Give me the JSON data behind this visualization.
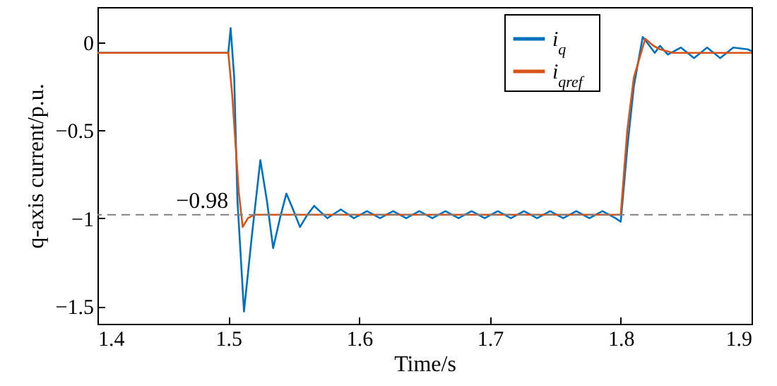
{
  "chart_data": {
    "type": "line",
    "xlabel": "Time/s",
    "ylabel": "q-axis current/p.u.",
    "xlim": [
      1.4,
      1.9
    ],
    "xticks": [
      1.4,
      1.5,
      1.6,
      1.7,
      1.8,
      1.9
    ],
    "ylim": [
      -1.6,
      0.2
    ],
    "yticks": [
      0,
      -0.5,
      -1,
      -1.5
    ],
    "grid": false,
    "legend": "top right",
    "marker": "none",
    "line_style": "solid",
    "ref_lines": [
      {
        "axis": "y",
        "value": -0.98,
        "label": "−0.98",
        "color": "#808080",
        "line_style": "dashed"
      }
    ],
    "series": [
      {
        "name": "i$_{q}$",
        "color": "#0072bd",
        "x": [
          1.4,
          1.5,
          1.5018,
          1.5045,
          1.507,
          1.512,
          1.518,
          1.5245,
          1.5295,
          1.5343,
          1.5395,
          1.5444,
          1.5495,
          1.5548,
          1.5605,
          1.5656,
          1.5757,
          1.586,
          1.596,
          1.606,
          1.616,
          1.626,
          1.636,
          1.646,
          1.656,
          1.666,
          1.676,
          1.686,
          1.696,
          1.706,
          1.716,
          1.726,
          1.736,
          1.746,
          1.756,
          1.766,
          1.776,
          1.786,
          1.796,
          1.8,
          1.805,
          1.81,
          1.8168,
          1.822,
          1.826,
          1.83,
          1.836,
          1.846,
          1.856,
          1.866,
          1.876,
          1.886,
          1.897,
          1.9
        ],
        "values": [
          -0.06,
          -0.06,
          0.08,
          -0.2,
          -0.9,
          -1.53,
          -1.1,
          -0.67,
          -0.9,
          -1.17,
          -1.0,
          -0.86,
          -0.95,
          -1.05,
          -0.98,
          -0.93,
          -1.0,
          -0.95,
          -1.0,
          -0.96,
          -1.0,
          -0.96,
          -1.0,
          -0.96,
          -1.0,
          -0.96,
          -1.0,
          -0.96,
          -1.0,
          -0.96,
          -1.0,
          -0.96,
          -1.0,
          -0.96,
          -1.0,
          -0.96,
          -1.0,
          -0.96,
          -1.0,
          -1.02,
          -0.6,
          -0.25,
          0.03,
          -0.02,
          -0.06,
          -0.02,
          -0.07,
          -0.03,
          -0.09,
          -0.03,
          -0.09,
          -0.03,
          -0.04,
          -0.05
        ]
      },
      {
        "name": "i$_{qref}$",
        "color": "#d95319",
        "x": [
          1.4,
          1.5,
          1.503,
          1.508,
          1.511,
          1.515,
          1.52,
          1.53,
          1.8,
          1.805,
          1.81,
          1.8187,
          1.825,
          1.83,
          1.84,
          1.9
        ],
        "values": [
          -0.06,
          -0.06,
          -0.3,
          -0.85,
          -1.05,
          -1.0,
          -0.98,
          -0.98,
          -0.98,
          -0.5,
          -0.2,
          0.02,
          -0.02,
          -0.04,
          -0.06,
          -0.06
        ]
      }
    ]
  }
}
